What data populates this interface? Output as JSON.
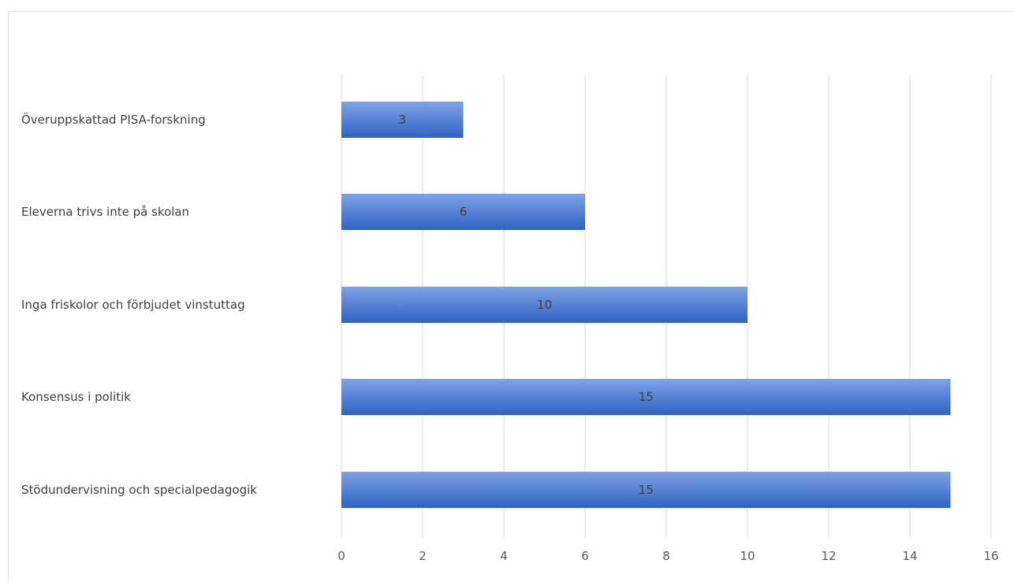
{
  "chart_data": {
    "type": "bar",
    "orientation": "horizontal",
    "title": "",
    "xlabel": "",
    "ylabel": "",
    "categories": [
      "Överuppskattad PISA-forskning",
      "Eleverna trivs inte på skolan",
      "Inga friskolor och förbjudet vinstuttag",
      "Konsensus i politik",
      "Stödundervisning och specialpedagogik"
    ],
    "values": [
      3,
      6,
      10,
      15,
      15
    ],
    "data_labels": [
      "3",
      "6",
      "10",
      "15",
      "15"
    ],
    "xlim": [
      0,
      16
    ],
    "x_ticks": [
      0,
      2,
      4,
      6,
      8,
      10,
      12,
      14,
      16
    ],
    "x_tick_labels": [
      "0",
      "2",
      "4",
      "6",
      "8",
      "10",
      "12",
      "14",
      "16"
    ],
    "grid": "vertical",
    "legend": "none",
    "colors": {
      "bar_top": "#7ea3e6",
      "bar_bottom": "#2f62c2",
      "gridline": "#d9d9d9",
      "label_text": "#404040",
      "tick_text": "#595959"
    }
  }
}
